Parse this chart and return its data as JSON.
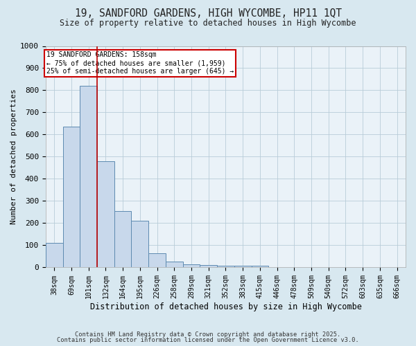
{
  "title_line1": "19, SANDFORD GARDENS, HIGH WYCOMBE, HP11 1QT",
  "title_line2": "Size of property relative to detached houses in High Wycombe",
  "xlabel": "Distribution of detached houses by size in High Wycombe",
  "ylabel": "Number of detached properties",
  "bar_labels": [
    "38sqm",
    "69sqm",
    "101sqm",
    "132sqm",
    "164sqm",
    "195sqm",
    "226sqm",
    "258sqm",
    "289sqm",
    "321sqm",
    "352sqm",
    "383sqm",
    "415sqm",
    "446sqm",
    "478sqm",
    "509sqm",
    "540sqm",
    "572sqm",
    "603sqm",
    "635sqm",
    "666sqm"
  ],
  "bar_values": [
    110,
    635,
    820,
    480,
    255,
    210,
    65,
    25,
    15,
    10,
    8,
    8,
    8,
    0,
    0,
    0,
    0,
    0,
    0,
    0,
    0
  ],
  "bar_color": "#c8d8eb",
  "bar_edge_color": "#5d8ab0",
  "vline_x_index": 2.5,
  "vline_color": "#bb0000",
  "annotation_text": "19 SANDFORD GARDENS: 158sqm\n← 75% of detached houses are smaller (1,959)\n25% of semi-detached houses are larger (645) →",
  "annotation_box_color": "#cc0000",
  "ylim": [
    0,
    1000
  ],
  "yticks": [
    0,
    100,
    200,
    300,
    400,
    500,
    600,
    700,
    800,
    900,
    1000
  ],
  "bg_color": "#d8e8f0",
  "plot_bg_color": "#eaf2f8",
  "grid_color": "#b8ccd8",
  "footer_line1": "Contains HM Land Registry data © Crown copyright and database right 2025.",
  "footer_line2": "Contains public sector information licensed under the Open Government Licence v3.0."
}
